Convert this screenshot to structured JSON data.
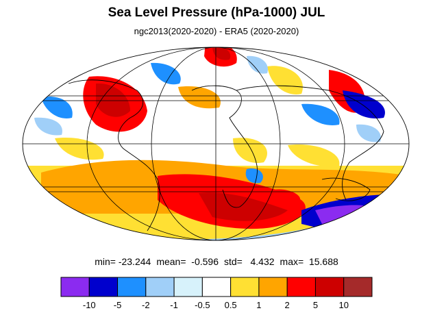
{
  "title": "Sea Level Pressure (hPa-1000) JUL",
  "subtitle": "ngc2013(2020-2020) - ERA5 (2020-2020)",
  "stats": {
    "min": "min= -23.244",
    "mean": "mean=  -0.596",
    "std": "std=   4.432",
    "max": "max=  15.688"
  },
  "colorbar": {
    "labels": [
      "-10",
      "-5",
      "-2",
      "-1",
      "-0.5",
      "0.5",
      "1",
      "2",
      "5",
      "10"
    ],
    "colors": [
      "#8b2bf0",
      "#0000cd",
      "#1e90ff",
      "#a0cff8",
      "#d7f2fb",
      "#ffffff",
      "#ffe033",
      "#ffa500",
      "#ff0000",
      "#cd0000",
      "#a52a2a"
    ]
  },
  "map": {
    "projection": "mollweide",
    "colors": {
      "ocean_land_background": "#ffffff",
      "coastline": "#000000",
      "gridline": "#000000"
    }
  }
}
